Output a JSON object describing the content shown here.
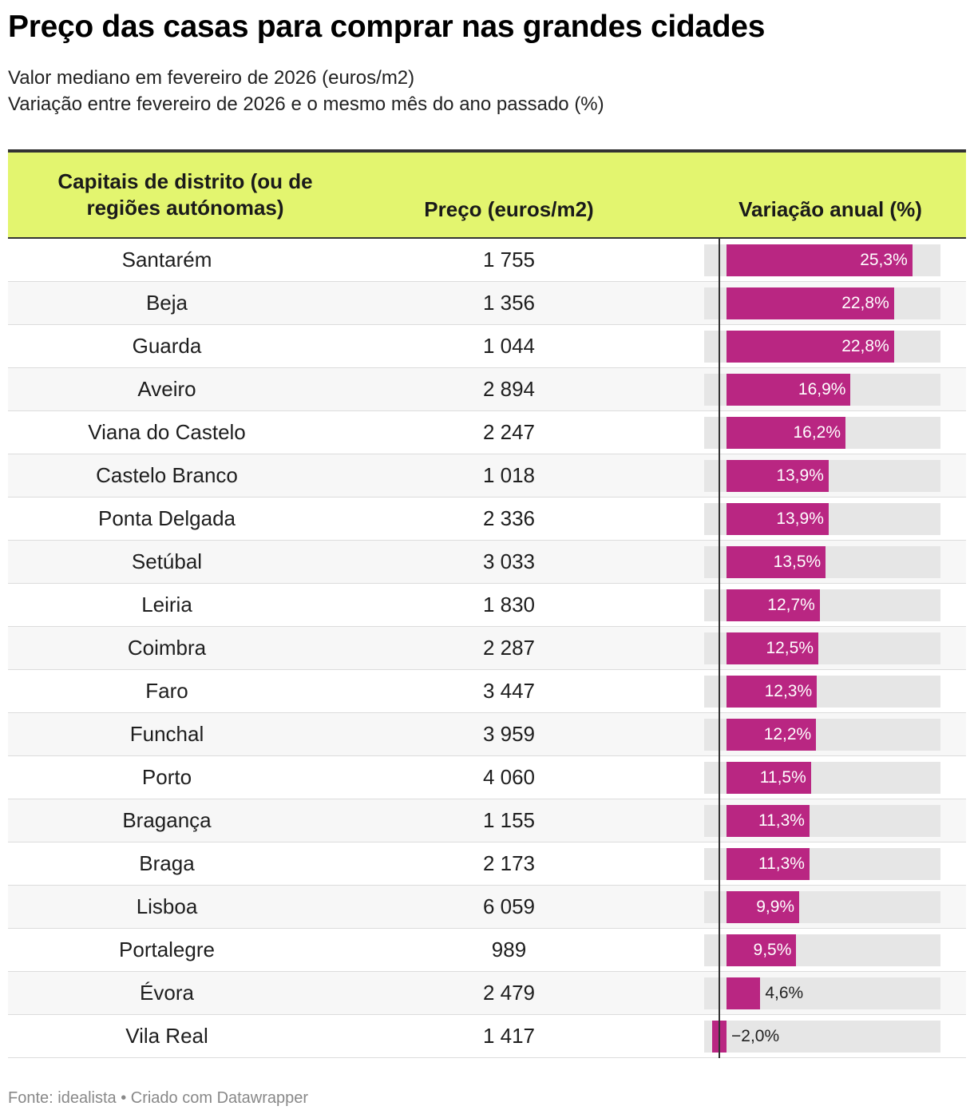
{
  "title": "Preço das casas para comprar nas grandes cidades",
  "subtitle_1": "Valor mediano em fevereiro de 2026 (euros/m2)",
  "subtitle_2": "Variação entre fevereiro de 2026 e o mesmo mês do ano passado (%)",
  "columns": {
    "city": "Capitais de distrito (ou de regiões autónomas)",
    "price": "Preço (euros/m2)",
    "variation": "Variação anual (%)"
  },
  "footer": "Fonte: idealista • Criado com Datawrapper",
  "colors": {
    "bar": "#b92682",
    "header_bg": "#e3f56f",
    "bar_track": "#e6e6e6"
  },
  "chart_data": {
    "type": "table",
    "bar_column": "Variação anual (%)",
    "bar_range": [
      -2.0,
      30.0
    ],
    "rows": [
      {
        "city": "Santarém",
        "price": "1 755",
        "variation": 25.3,
        "variation_label": "25,3%"
      },
      {
        "city": "Beja",
        "price": "1 356",
        "variation": 22.8,
        "variation_label": "22,8%"
      },
      {
        "city": "Guarda",
        "price": "1 044",
        "variation": 22.8,
        "variation_label": "22,8%"
      },
      {
        "city": "Aveiro",
        "price": "2 894",
        "variation": 16.9,
        "variation_label": "16,9%"
      },
      {
        "city": "Viana do Castelo",
        "price": "2 247",
        "variation": 16.2,
        "variation_label": "16,2%"
      },
      {
        "city": "Castelo Branco",
        "price": "1 018",
        "variation": 13.9,
        "variation_label": "13,9%"
      },
      {
        "city": "Ponta Delgada",
        "price": "2 336",
        "variation": 13.9,
        "variation_label": "13,9%"
      },
      {
        "city": "Setúbal",
        "price": "3 033",
        "variation": 13.5,
        "variation_label": "13,5%"
      },
      {
        "city": "Leiria",
        "price": "1 830",
        "variation": 12.7,
        "variation_label": "12,7%"
      },
      {
        "city": "Coimbra",
        "price": "2 287",
        "variation": 12.5,
        "variation_label": "12,5%"
      },
      {
        "city": "Faro",
        "price": "3 447",
        "variation": 12.3,
        "variation_label": "12,3%"
      },
      {
        "city": "Funchal",
        "price": "3 959",
        "variation": 12.2,
        "variation_label": "12,2%"
      },
      {
        "city": "Porto",
        "price": "4 060",
        "variation": 11.5,
        "variation_label": "11,5%"
      },
      {
        "city": "Bragança",
        "price": "1 155",
        "variation": 11.3,
        "variation_label": "11,3%"
      },
      {
        "city": "Braga",
        "price": "2 173",
        "variation": 11.3,
        "variation_label": "11,3%"
      },
      {
        "city": "Lisboa",
        "price": "6 059",
        "variation": 9.9,
        "variation_label": "9,9%"
      },
      {
        "city": "Portalegre",
        "price": "989",
        "variation": 9.5,
        "variation_label": "9,5%"
      },
      {
        "city": "Évora",
        "price": "2 479",
        "variation": 4.6,
        "variation_label": "4,6%"
      },
      {
        "city": "Vila Real",
        "price": "1 417",
        "variation": -2.0,
        "variation_label": "−2,0%"
      }
    ]
  }
}
